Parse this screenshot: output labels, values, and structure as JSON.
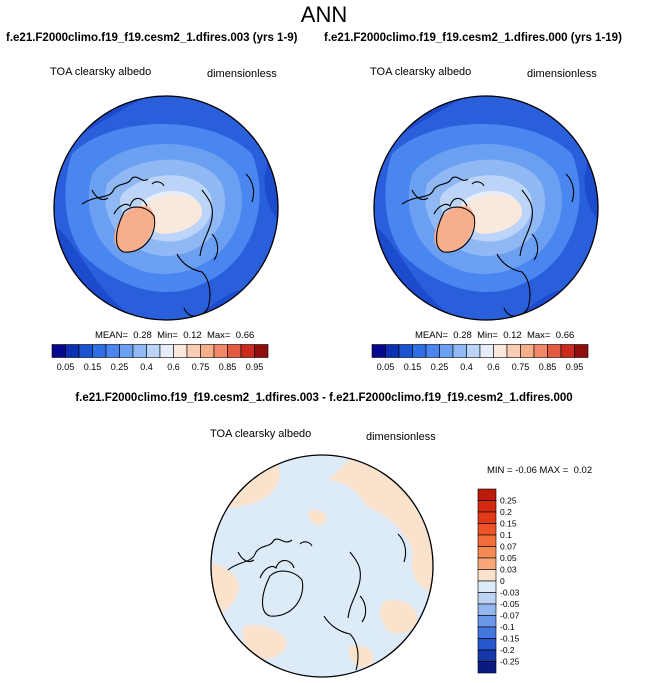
{
  "page": {
    "title": "ANN"
  },
  "panels": [
    {
      "id": "left",
      "subtitle": "f.e21.F2000climo.f19_f19.cesm2_1.dfires.003 (yrs 1-9)",
      "field_label": "TOA clearsky albedo",
      "units_label": "dimensionless",
      "stats": {
        "mean_label": "MEAN=",
        "mean": "0.28",
        "min_label": "Min=",
        "min": "0.12",
        "max_label": "Max=",
        "max": "0.66"
      }
    },
    {
      "id": "right",
      "subtitle": "f.e21.F2000climo.f19_f19.cesm2_1.dfires.000 (yrs 1-19)",
      "field_label": "TOA clearsky albedo",
      "units_label": "dimensionless",
      "stats": {
        "mean_label": "MEAN=",
        "mean": "0.28",
        "min_label": "Min=",
        "min": "0.12",
        "max_label": "Max=",
        "max": "0.66"
      }
    }
  ],
  "diff_panel": {
    "title": "f.e21.F2000climo.f19_f19.cesm2_1.dfires.003 - f.e21.F2000climo.f19_f19.cesm2_1.dfires.000",
    "field_label": "TOA clearsky albedo",
    "units_label": "dimensionless",
    "stats": {
      "min_label": "MIN =",
      "min": "-0.06",
      "max_label": "MAX =",
      "max": "0.02"
    }
  },
  "chart_data": [
    {
      "type": "heatmap",
      "projection": "north-polar-stereographic",
      "title": "TOA clearsky albedo",
      "units": "dimensionless",
      "colorbar": {
        "orientation": "horizontal",
        "tick_labels": [
          "0.05",
          "0.15",
          "0.25",
          "0.4",
          "0.6",
          "0.75",
          "0.85",
          "0.95"
        ],
        "levels": [
          0.05,
          0.1,
          0.15,
          0.2,
          0.25,
          0.3,
          0.4,
          0.5,
          0.6,
          0.7,
          0.75,
          0.8,
          0.85,
          0.9,
          0.95
        ],
        "colors": [
          "#08088f",
          "#0c2fb4",
          "#1a52d2",
          "#2f6fe6",
          "#4a86ef",
          "#6a9ff2",
          "#8fb8f5",
          "#bcd4f7",
          "#e6eefb",
          "#fbe8dc",
          "#f9cdb3",
          "#f6ae8d",
          "#f2876a",
          "#e45a40",
          "#cc2a1d",
          "#8e0d0d"
        ]
      },
      "stats": {
        "mean": 0.28,
        "min": 0.12,
        "max": 0.66
      }
    },
    {
      "type": "heatmap",
      "projection": "north-polar-stereographic",
      "title": "TOA clearsky albedo",
      "units": "dimensionless",
      "colorbar": {
        "orientation": "horizontal",
        "tick_labels": [
          "0.05",
          "0.15",
          "0.25",
          "0.4",
          "0.6",
          "0.75",
          "0.85",
          "0.95"
        ],
        "levels": [
          0.05,
          0.1,
          0.15,
          0.2,
          0.25,
          0.3,
          0.4,
          0.5,
          0.6,
          0.7,
          0.75,
          0.8,
          0.85,
          0.9,
          0.95
        ],
        "colors": [
          "#08088f",
          "#0c2fb4",
          "#1a52d2",
          "#2f6fe6",
          "#4a86ef",
          "#6a9ff2",
          "#8fb8f5",
          "#bcd4f7",
          "#e6eefb",
          "#fbe8dc",
          "#f9cdb3",
          "#f6ae8d",
          "#f2876a",
          "#e45a40",
          "#cc2a1d",
          "#8e0d0d"
        ]
      },
      "stats": {
        "mean": 0.28,
        "min": 0.12,
        "max": 0.66
      }
    },
    {
      "type": "heatmap",
      "projection": "north-polar-stereographic",
      "title": "TOA clearsky albedo",
      "units": "dimensionless",
      "colorbar": {
        "orientation": "vertical",
        "tick_labels": [
          "0.25",
          "0.2",
          "0.15",
          "0.1",
          "0.07",
          "0.05",
          "0.03",
          "0",
          "-0.03",
          "-0.05",
          "-0.07",
          "-0.1",
          "-0.15",
          "-0.2",
          "-0.25"
        ],
        "colors_top_to_bottom": [
          "#bb1c0c",
          "#d42a12",
          "#e23a18",
          "#ec5325",
          "#f16e3a",
          "#f58a55",
          "#f8a878",
          "#fbe2cc",
          "#ddeaf8",
          "#bcd3f4",
          "#93b6ef",
          "#6b97e9",
          "#4476e0",
          "#2856cd",
          "#1437a9",
          "#0a1a80"
        ]
      },
      "stats": {
        "min": -0.06,
        "max": 0.02
      }
    }
  ]
}
